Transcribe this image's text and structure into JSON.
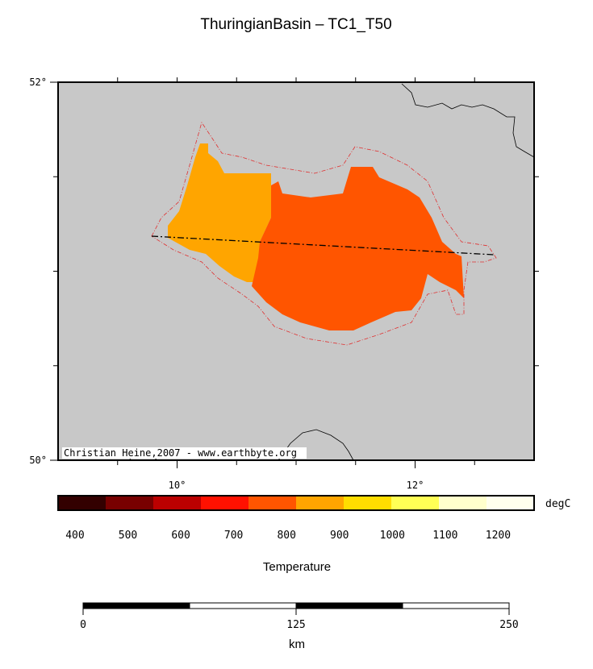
{
  "title": "ThuringianBasin – TC1_T50",
  "map": {
    "lon_lim": [
      9,
      13
    ],
    "lat_lim": [
      50,
      52
    ],
    "lon_ticks": [
      {
        "value": 10,
        "label": "10°"
      },
      {
        "value": 12,
        "label": "12°"
      }
    ],
    "lat_ticks": [
      {
        "value": 50,
        "label": "50°"
      },
      {
        "value": 52,
        "label": "52°"
      }
    ],
    "lon_minor_ticks": [
      9.5,
      10,
      10.5,
      11,
      11.5,
      12,
      12.5
    ],
    "lat_minor_ticks": [
      50.5,
      51,
      51.5
    ],
    "credit": "Christian Heine,2007 - www.earthbyte.org"
  },
  "colorbar": {
    "colors": [
      "#330000",
      "#780000",
      "#bb0000",
      "#ff1100",
      "#ff5500",
      "#ffa500",
      "#ffdd00",
      "#ffff55",
      "#ffffcc",
      "#ffffee"
    ],
    "lim": [
      368,
      1268
    ],
    "ticks": [
      400,
      500,
      600,
      700,
      800,
      900,
      1000,
      1100,
      1200
    ],
    "unit": "degC",
    "label": "Temperature"
  },
  "scale_bar": {
    "lim": [
      0,
      250
    ],
    "ticks": [
      0,
      125,
      250
    ],
    "unit": "km"
  }
}
